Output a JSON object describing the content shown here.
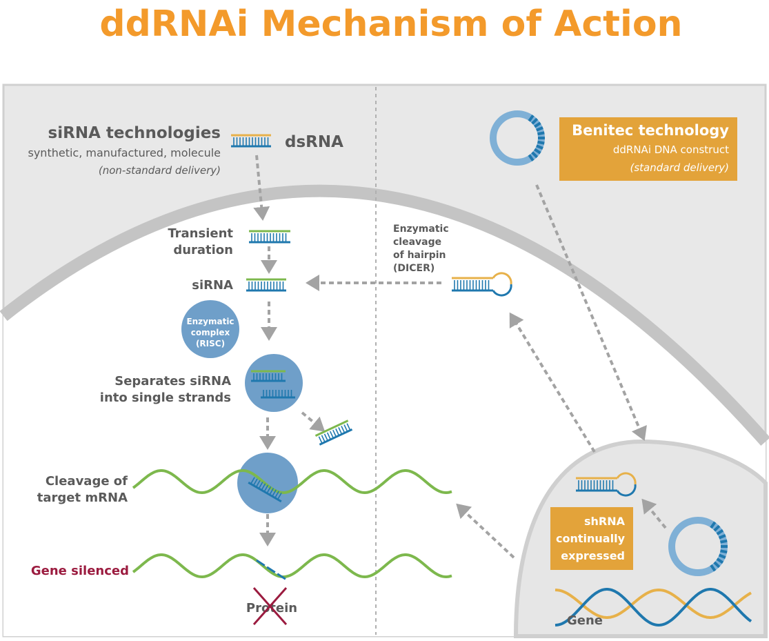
{
  "title": "ddRNAi Mechanism of Action",
  "colors": {
    "title": "#F39A2B",
    "orange_box": "#E3A33A",
    "blue": "#1F78AE",
    "light_blue": "#7FB0D6",
    "green": "#7DB84D",
    "yellow": "#E7B14A",
    "red": "#9B1B3F",
    "arrow": "#A3A3A3"
  },
  "left": {
    "heading": "siRNA technologies",
    "subtitle": "synthetic, manufactured, molecule",
    "delivery": "(non-standard delivery)",
    "dsrna": "dsRNA",
    "transient": [
      "Transient",
      "duration"
    ],
    "sirna": "siRNA",
    "risc": [
      "Enzymatic",
      "complex",
      "(RISC)"
    ],
    "separates": [
      "Separates siRNA",
      "into single strands"
    ],
    "cleavage": [
      "Cleavage of",
      "target mRNA"
    ],
    "silenced": "Gene silenced",
    "protein": "Protein"
  },
  "right": {
    "heading": "Benitec technology",
    "subtitle": "ddRNAi DNA construct",
    "delivery": "(standard delivery)",
    "dicer": [
      "Enzymatic",
      "cleavage",
      "of hairpin",
      "(DICER)"
    ],
    "shrna": [
      "shRNA",
      "continually",
      "expressed"
    ],
    "gene": "Gene"
  }
}
